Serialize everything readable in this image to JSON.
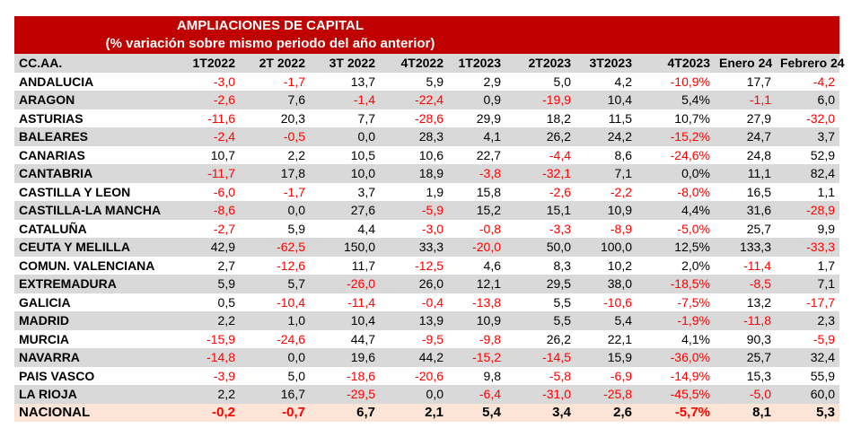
{
  "title": "AMPLIACIONES DE CAPITAL",
  "subtitle": "(% variación sobre mismo periodo del año anterior)",
  "colors": {
    "header_red": "#c00000",
    "alt_row": "#d9d9d9",
    "total_row": "#fce4d6",
    "negative": "#ff0000"
  },
  "columns": [
    "CC.AA.",
    "1T2022",
    "2T 2022",
    "3T 2022",
    "4T2022",
    "1T2023",
    "2T2023",
    "3T2023",
    "4T2023",
    "Enero 24",
    "Febrero 24"
  ],
  "rows": [
    {
      "region": "ANDALUCIA",
      "values": [
        "-3,0",
        "-1,7",
        "13,7",
        "5,9",
        "2,9",
        "5,0",
        "4,2",
        "-10,9%",
        "17,7",
        "-4,2"
      ]
    },
    {
      "region": "ARAGON",
      "values": [
        "-2,6",
        "7,6",
        "-1,4",
        "-22,4",
        "0,9",
        "-19,9",
        "10,4",
        "5,4%",
        "-1,1",
        "6,0"
      ]
    },
    {
      "region": "ASTURIAS",
      "values": [
        "-11,6",
        "20,3",
        "7,7",
        "-28,6",
        "29,9",
        "18,2",
        "11,5",
        "10,7%",
        "27,9",
        "-32,0"
      ]
    },
    {
      "region": "BALEARES",
      "values": [
        "-2,4",
        "-0,5",
        "0,0",
        "28,3",
        "4,1",
        "26,2",
        "24,2",
        "-15,2%",
        "24,7",
        "3,7"
      ]
    },
    {
      "region": "CANARIAS",
      "values": [
        "10,7",
        "2,2",
        "10,5",
        "10,6",
        "22,7",
        "-4,4",
        "8,6",
        "-24,6%",
        "24,8",
        "52,9"
      ]
    },
    {
      "region": "CANTABRIA",
      "values": [
        "-11,7",
        "17,8",
        "10,0",
        "18,9",
        "-3,8",
        "-32,1",
        "7,1",
        "0,0%",
        "11,1",
        "82,4"
      ]
    },
    {
      "region": "CASTILLA Y LEON",
      "values": [
        "-6,0",
        "-1,7",
        "3,7",
        "1,9",
        "15,8",
        "-2,6",
        "-2,2",
        "-8,0%",
        "16,5",
        "1,1"
      ]
    },
    {
      "region": "CASTILLA-LA MANCHA",
      "values": [
        "-8,6",
        "0,0",
        "27,6",
        "-5,9",
        "15,2",
        "15,1",
        "10,9",
        "4,4%",
        "31,6",
        "-28,9"
      ]
    },
    {
      "region": "CATALUÑA",
      "values": [
        "-2,7",
        "5,9",
        "4,4",
        "-3,0",
        "-0,8",
        "-3,3",
        "-8,9",
        "-5,0%",
        "25,7",
        "9,9"
      ]
    },
    {
      "region": "CEUTA Y MELILLA",
      "values": [
        "42,9",
        "-62,5",
        "150,0",
        "33,3",
        "-20,0",
        "50,0",
        "100,0",
        "12,5%",
        "133,3",
        "-33,3"
      ]
    },
    {
      "region": "COMUN. VALENCIANA",
      "values": [
        "2,7",
        "-12,6",
        "11,7",
        "-12,5",
        "4,6",
        "8,3",
        "10,2",
        "2,0%",
        "-11,4",
        "1,7"
      ]
    },
    {
      "region": "EXTREMADURA",
      "values": [
        "5,9",
        "5,7",
        "-26,0",
        "26,0",
        "12,1",
        "29,5",
        "38,0",
        "-18,5%",
        "-8,5",
        "7,1"
      ]
    },
    {
      "region": "GALICIA",
      "values": [
        "0,5",
        "-10,4",
        "-11,4",
        "-0,4",
        "-13,8",
        "5,5",
        "-10,6",
        "-7,5%",
        "13,2",
        "-17,7"
      ]
    },
    {
      "region": "MADRID",
      "values": [
        "2,2",
        "1,0",
        "10,4",
        "13,9",
        "10,9",
        "5,5",
        "5,4",
        "-1,9%",
        "-11,8",
        "2,3"
      ]
    },
    {
      "region": "MURCIA",
      "values": [
        "-15,9",
        "-24,6",
        "44,7",
        "-9,5",
        "-9,8",
        "26,2",
        "22,1",
        "4,1%",
        "90,3",
        "-5,9"
      ]
    },
    {
      "region": "NAVARRA",
      "values": [
        "-14,8",
        "0,0",
        "19,6",
        "44,2",
        "-15,2",
        "-14,5",
        "15,9",
        "-36,0%",
        "25,7",
        "32,4"
      ]
    },
    {
      "region": "PAIS VASCO",
      "values": [
        "-3,9",
        "5,0",
        "-18,6",
        "-20,6",
        "9,8",
        "-5,8",
        "-6,9",
        "-14,9%",
        "15,3",
        "55,9"
      ]
    },
    {
      "region": "LA RIOJA",
      "values": [
        "2,2",
        "16,7",
        "-29,5",
        "0,0",
        "-6,4",
        "-31,0",
        "-25,8",
        "-45,5%",
        "-5,0",
        "60,0"
      ]
    }
  ],
  "total": {
    "region": "NACIONAL",
    "values": [
      "-0,2",
      "-0,7",
      "6,7",
      "2,1",
      "5,4",
      "3,4",
      "2,6",
      "-5,7%",
      "8,1",
      "5,3"
    ]
  }
}
